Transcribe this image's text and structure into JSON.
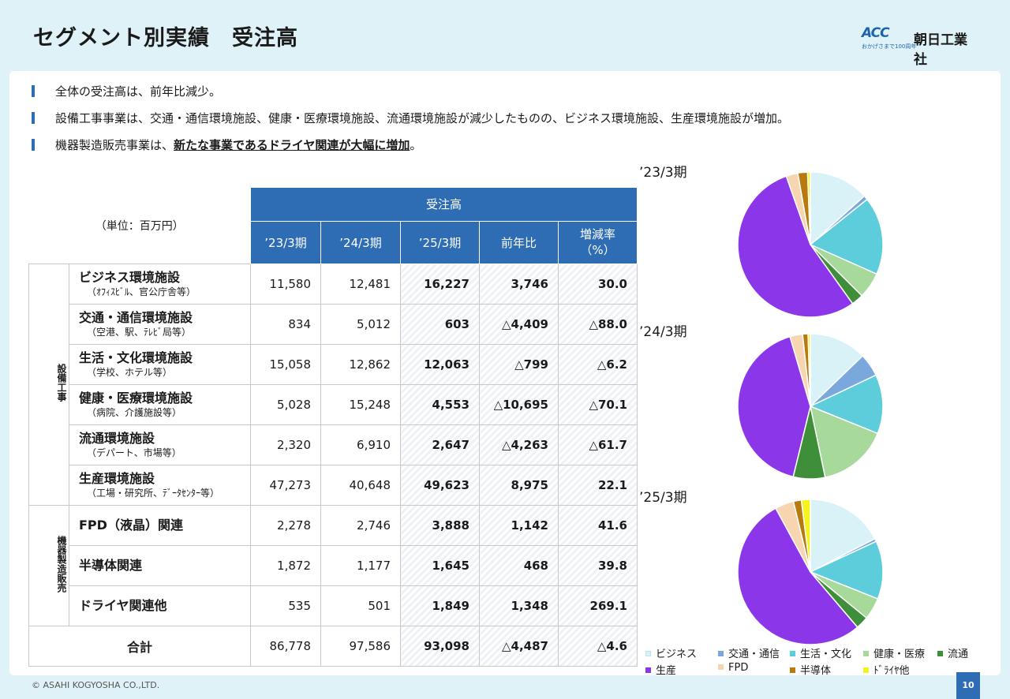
{
  "header": {
    "title": "セグメント別実績　受注高",
    "logo_mark": "ACC",
    "logo_sub": "おかげさまで100周年",
    "logo_name": "朝日工業社"
  },
  "bullets": [
    {
      "text": "全体の受注高は、前年比減少。",
      "em": ""
    },
    {
      "text": "設備工事事業は、交通・通信環境施設、健康・医療環境施設、流通環境施設が減少したものの、ビジネス環境施設、生産環境施設が増加。",
      "em": ""
    },
    {
      "text": "機器製造販売事業は、",
      "em": "新たな事業であるドライヤ関連が大幅に増加",
      "tail": "。"
    }
  ],
  "table": {
    "unit": "（単位：百万円）",
    "group_header": "受注高",
    "columns": [
      "’23/3期",
      "’24/3期",
      "’25/3期",
      "前年比",
      "増減率（%）"
    ],
    "seg1": "設備工事",
    "seg2": "機器製造販売",
    "rows": [
      {
        "name": "ビジネス環境施設",
        "sub": "（ｵﾌｨｽﾋﾞﾙ、官公庁舎等）",
        "v": [
          "11,580",
          "12,481",
          "16,227",
          "3,746",
          "30.0"
        ]
      },
      {
        "name": "交通・通信環境施設",
        "sub": "（空港、駅、ﾃﾚﾋﾞ局等）",
        "v": [
          "834",
          "5,012",
          "603",
          "△4,409",
          "△88.0"
        ]
      },
      {
        "name": "生活・文化環境施設",
        "sub": "（学校、ホテル等）",
        "v": [
          "15,058",
          "12,862",
          "12,063",
          "△799",
          "△6.2"
        ]
      },
      {
        "name": "健康・医療環境施設",
        "sub": "（病院、介護施設等）",
        "v": [
          "5,028",
          "15,248",
          "4,553",
          "△10,695",
          "△70.1"
        ]
      },
      {
        "name": "流通環境施設",
        "sub": "（デパート、市場等）",
        "v": [
          "2,320",
          "6,910",
          "2,647",
          "△4,263",
          "△61.7"
        ]
      },
      {
        "name": "生産環境施設",
        "sub": "（工場・研究所、ﾃﾞｰﾀｾﾝﾀｰ等）",
        "v": [
          "47,273",
          "40,648",
          "49,623",
          "8,975",
          "22.1"
        ]
      },
      {
        "name": "FPD（液晶）関連",
        "sub": "",
        "v": [
          "2,278",
          "2,746",
          "3,888",
          "1,142",
          "41.6"
        ]
      },
      {
        "name": "半導体関連",
        "sub": "",
        "v": [
          "1,872",
          "1,177",
          "1,645",
          "468",
          "39.8"
        ]
      },
      {
        "name": "ドライヤ関連他",
        "sub": "",
        "v": [
          "535",
          "501",
          "1,849",
          "1,348",
          "269.1"
        ]
      }
    ],
    "total": {
      "name": "合計",
      "v": [
        "86,778",
        "97,586",
        "93,098",
        "△4,487",
        "△4.6"
      ]
    }
  },
  "chart_data": [
    {
      "type": "pie",
      "title": "’23/3期",
      "labels": [
        "ビジネス",
        "交通・通信",
        "生活・文化",
        "健康・医療",
        "流通",
        "生産",
        "FPD",
        "半導体",
        "ﾄﾞﾗｲﾔ他"
      ],
      "values": [
        11580,
        834,
        15058,
        5028,
        2320,
        47273,
        2278,
        1872,
        535
      ]
    },
    {
      "type": "pie",
      "title": "’24/3期",
      "labels": [
        "ビジネス",
        "交通・通信",
        "生活・文化",
        "健康・医療",
        "流通",
        "生産",
        "FPD",
        "半導体",
        "ﾄﾞﾗｲﾔ他"
      ],
      "values": [
        12481,
        5012,
        12862,
        15248,
        6910,
        40648,
        2746,
        1177,
        501
      ]
    },
    {
      "type": "pie",
      "title": "’25/3期",
      "labels": [
        "ビジネス",
        "交通・通信",
        "生活・文化",
        "健康・医療",
        "流通",
        "生産",
        "FPD",
        "半導体",
        "ﾄﾞﾗｲﾔ他"
      ],
      "values": [
        16227,
        603,
        12063,
        4553,
        2647,
        49623,
        3888,
        1645,
        1849
      ]
    }
  ],
  "colors": [
    "#d9f2f7",
    "#7aa7dc",
    "#5ecddb",
    "#a6d99a",
    "#3f8f3a",
    "#8c36ea",
    "#f6d5b0",
    "#b8790f",
    "#f6f21e"
  ],
  "legend": [
    "ビジネス",
    "交通・通信",
    "生活・文化",
    "健康・医療",
    "流通",
    "生産",
    "FPD",
    "半導体",
    "ﾄﾞﾗｲﾔ他"
  ],
  "footer": {
    "copyright": "© ASAHI KOGYOSHA CO.,LTD.",
    "page": "10"
  }
}
